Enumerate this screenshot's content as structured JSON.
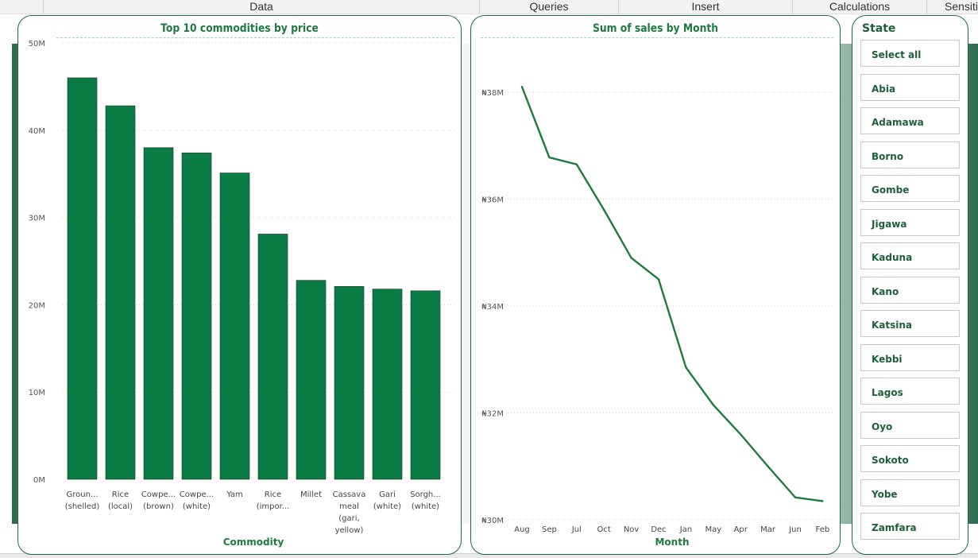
{
  "ribbon": {
    "tabs": [
      {
        "label": "Data"
      },
      {
        "label": "Queries"
      },
      {
        "label": "Insert"
      },
      {
        "label": "Calculations"
      },
      {
        "label": "Sensiti"
      }
    ]
  },
  "colors": {
    "accent": "#0a7d45",
    "title": "#1e7a3f",
    "card_border": "#1f6b46"
  },
  "bar_card": {
    "title": "Top 10 commodities by price",
    "chart_data": {
      "type": "bar",
      "title": "Top 10 commodities by price",
      "xlabel": "Commodity",
      "ylabel": "",
      "ylim": [
        0,
        50
      ],
      "y_ticks": [
        "0M",
        "10M",
        "20M",
        "30M",
        "40M",
        "50M"
      ],
      "categories": [
        [
          "Groun...",
          "(shelled)"
        ],
        [
          "Rice",
          "(local)"
        ],
        [
          "Cowpe...",
          "(brown)"
        ],
        [
          "Cowpe...",
          "(white)"
        ],
        [
          "Yam"
        ],
        [
          "Rice",
          "(impor..."
        ],
        [
          "Millet"
        ],
        [
          "Cassava",
          "meal",
          "(gari,",
          "yellow)"
        ],
        [
          "Gari",
          "(white)"
        ],
        [
          "Sorgh...",
          "(white)"
        ]
      ],
      "values": [
        46.0,
        42.8,
        38.0,
        37.4,
        35.1,
        28.1,
        22.8,
        22.1,
        21.8,
        21.6
      ],
      "grid": true
    }
  },
  "line_card": {
    "title": "Sum of sales by Month",
    "chart_data": {
      "type": "line",
      "title": "Sum of sales by Month",
      "xlabel": "Month",
      "ylabel": "",
      "ylim": [
        30,
        39.1
      ],
      "y_ticks": [
        {
          "v": 30,
          "label": "₦30M"
        },
        {
          "v": 32,
          "label": "₦32M"
        },
        {
          "v": 34,
          "label": "₦34M"
        },
        {
          "v": 36,
          "label": "₦36M"
        },
        {
          "v": 38,
          "label": "₦38M"
        }
      ],
      "x": [
        "Aug",
        "Sep",
        "Jul",
        "Oct",
        "Nov",
        "Dec",
        "Jan",
        "May",
        "Apr",
        "Mar",
        "Jun",
        "Feb"
      ],
      "values": [
        38.1,
        36.78,
        36.65,
        35.8,
        34.9,
        34.5,
        32.85,
        32.15,
        31.6,
        31.0,
        30.42,
        30.35
      ],
      "grid": true
    }
  },
  "slicer": {
    "title": "State",
    "items": [
      "Select all",
      "Abia",
      "Adamawa",
      "Borno",
      "Gombe",
      "Jigawa",
      "Kaduna",
      "Kano",
      "Katsina",
      "Kebbi",
      "Lagos",
      "Oyo",
      "Sokoto",
      "Yobe",
      "Zamfara"
    ]
  }
}
